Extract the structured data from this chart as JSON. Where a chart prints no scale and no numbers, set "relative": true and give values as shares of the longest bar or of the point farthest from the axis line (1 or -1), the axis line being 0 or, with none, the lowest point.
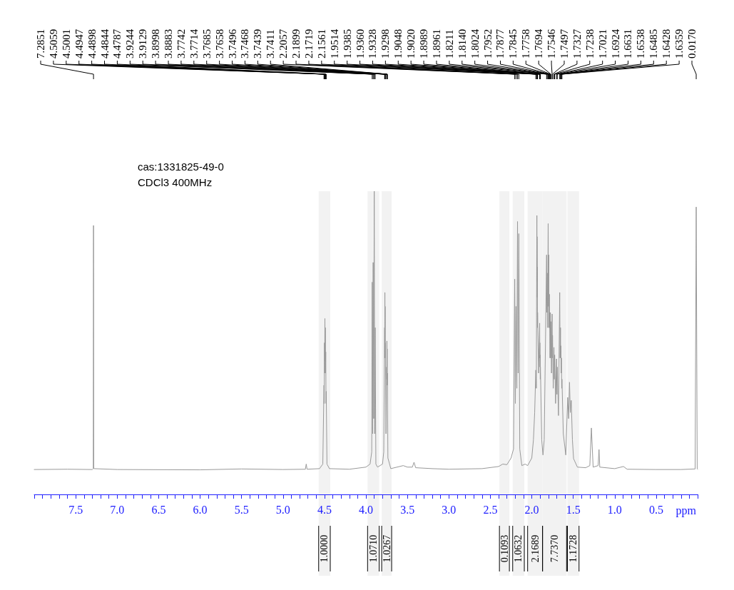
{
  "chart_data": {
    "type": "line",
    "title": "cas:1331825-49-0",
    "subtitle": "CDCl3 400MHz",
    "xlabel": "ppm",
    "relative": true,
    "x": [
      8.0,
      7.6,
      7.3,
      7.288,
      7.2851,
      7.282,
      7.0,
      6.0,
      5.5,
      5.0,
      4.73,
      4.72,
      4.71,
      4.56,
      4.52,
      4.5059,
      4.503,
      4.5001,
      4.4975,
      4.4947,
      4.4922,
      4.4898,
      4.487,
      4.4844,
      4.4815,
      4.4787,
      4.47,
      4.44,
      4.2,
      4.0,
      3.95,
      3.93,
      3.9244,
      3.9185,
      3.9129,
      3.906,
      3.8998,
      3.894,
      3.8883,
      3.88,
      3.86,
      3.8,
      3.785,
      3.7742,
      3.7728,
      3.7714,
      3.77,
      3.7685,
      3.7672,
      3.7658,
      3.758,
      3.7496,
      3.7482,
      3.7468,
      3.7454,
      3.7439,
      3.7425,
      3.7411,
      3.735,
      3.7,
      3.55,
      3.5,
      3.44,
      3.42,
      3.4,
      3.2,
      3.0,
      2.6,
      2.4,
      2.35,
      2.3,
      2.25,
      2.22,
      2.2057,
      2.198,
      2.1899,
      2.18,
      2.1719,
      2.164,
      2.1561,
      2.145,
      2.12,
      2.08,
      2.05,
      2.0,
      1.98,
      1.965,
      1.9514,
      1.945,
      1.9385,
      1.9372,
      1.936,
      1.9344,
      1.9328,
      1.9313,
      1.9298,
      1.918,
      1.9048,
      1.9034,
      1.902,
      1.9005,
      1.8989,
      1.8975,
      1.8961,
      1.88,
      1.865,
      1.85,
      1.8211,
      1.8175,
      1.814,
      1.808,
      1.8024,
      1.799,
      1.7952,
      1.7915,
      1.7877,
      1.7861,
      1.7845,
      1.78,
      1.7758,
      1.7725,
      1.7694,
      1.762,
      1.7546,
      1.752,
      1.7497,
      1.741,
      1.7327,
      1.728,
      1.7238,
      1.713,
      1.7021,
      1.697,
      1.6924,
      1.678,
      1.6631,
      1.6585,
      1.6538,
      1.651,
      1.6485,
      1.6456,
      1.6428,
      1.639,
      1.6359,
      1.62,
      1.59,
      1.567,
      1.556,
      1.545,
      1.535,
      1.524,
      1.51,
      1.496,
      1.45,
      1.35,
      1.3,
      1.281,
      1.26,
      1.2,
      1.189,
      1.18,
      1.0,
      0.894,
      0.85,
      0.5,
      0.2,
      0.03,
      0.017,
      0.005,
      0.0
    ],
    "series": [
      {
        "color": "#999999",
        "values": [
          0.082,
          0.083,
          0.082,
          0.085,
          0.887,
          0.085,
          0.082,
          0.081,
          0.084,
          0.082,
          0.083,
          0.1,
          0.083,
          0.085,
          0.1,
          0.36,
          0.3,
          0.5,
          0.4,
          0.58,
          0.44,
          0.55,
          0.4,
          0.47,
          0.3,
          0.34,
          0.1,
          0.085,
          0.083,
          0.09,
          0.1,
          0.14,
          0.7,
          0.2,
          0.765,
          0.25,
          1,
          0.2,
          0.55,
          0.1,
          0.09,
          0.1,
          0.14,
          0.55,
          0.45,
          0.666,
          0.5,
          0.62,
          0.45,
          0.5,
          0.2,
          0.42,
          0.38,
          0.506,
          0.4,
          0.48,
          0.36,
          0.4,
          0.12,
          0.085,
          0.095,
          0.09,
          0.09,
          0.106,
          0.088,
          0.085,
          0.083,
          0.085,
          0.092,
          0.1,
          0.098,
          0.12,
          0.15,
          0.71,
          0.3,
          0.62,
          0.35,
          0.9,
          0.4,
          0.86,
          0.15,
          0.095,
          0.1,
          0.095,
          0.12,
          0.18,
          0.27,
          0.41,
          0.35,
          0.92,
          0.7,
          0.85,
          0.65,
          0.75,
          0.55,
          0.6,
          0.4,
          0.565,
          0.45,
          0.5,
          0.42,
          0.46,
          0.38,
          0.42,
          0.18,
          0.13,
          0.18,
          0.79,
          0.6,
          0.73,
          0.55,
          0.893,
          0.62,
          0.79,
          0.55,
          0.66,
          0.55,
          0.6,
          0.45,
          0.6,
          0.45,
          0.57,
          0.4,
          0.595,
          0.45,
          0.525,
          0.35,
          0.485,
          0.38,
          0.46,
          0.3,
          0.447,
          0.33,
          0.42,
          0.26,
          0.666,
          0.45,
          0.55,
          0.45,
          0.49,
          0.4,
          0.45,
          0.35,
          0.38,
          0.2,
          0.13,
          0.32,
          0.25,
          0.37,
          0.27,
          0.31,
          0.18,
          0.118,
          0.09,
          0.088,
          0.095,
          0.219,
          0.09,
          0.095,
          0.148,
          0.09,
          0.085,
          0.092,
          0.083,
          0.082,
          0.082,
          0.084,
          0.948,
          0.084,
          0.083
        ]
      }
    ],
    "xlim": [
      8,
      0
    ],
    "xticks": [
      {
        "value": 8,
        "label": null
      },
      {
        "value": 7.9,
        "label": null
      },
      {
        "value": 7.8,
        "label": null
      },
      {
        "value": 7.7,
        "label": null
      },
      {
        "value": 7.6,
        "label": null
      },
      7.5,
      {
        "value": 7.4,
        "label": null
      },
      {
        "value": 7.3,
        "label": null
      },
      {
        "value": 7.2,
        "label": null
      },
      {
        "value": 7.1,
        "label": null
      },
      {
        "value": 7,
        "label": "7.0"
      },
      {
        "value": 6.9,
        "label": null
      },
      {
        "value": 6.8,
        "label": null
      },
      {
        "value": 6.7,
        "label": null
      },
      {
        "value": 6.6,
        "label": null
      },
      6.5,
      {
        "value": 6.4,
        "label": null
      },
      {
        "value": 6.3,
        "label": null
      },
      {
        "value": 6.2,
        "label": null
      },
      {
        "value": 6.1,
        "label": null
      },
      {
        "value": 6,
        "label": "6.0"
      },
      {
        "value": 5.9,
        "label": null
      },
      {
        "value": 5.8,
        "label": null
      },
      {
        "value": 5.7,
        "label": null
      },
      {
        "value": 5.6,
        "label": null
      },
      5.5,
      {
        "value": 5.4,
        "label": null
      },
      {
        "value": 5.3,
        "label": null
      },
      {
        "value": 5.2,
        "label": null
      },
      {
        "value": 5.1,
        "label": null
      },
      {
        "value": 5,
        "label": "5.0"
      },
      {
        "value": 4.9,
        "label": null
      },
      {
        "value": 4.8,
        "label": null
      },
      {
        "value": 4.7,
        "label": null
      },
      {
        "value": 4.6,
        "label": null
      },
      4.5,
      {
        "value": 4.4,
        "label": null
      },
      {
        "value": 4.3,
        "label": null
      },
      {
        "value": 4.2,
        "label": null
      },
      {
        "value": 4.1,
        "label": null
      },
      {
        "value": 4,
        "label": "4.0"
      },
      {
        "value": 3.9,
        "label": null
      },
      {
        "value": 3.8,
        "label": null
      },
      {
        "value": 3.7,
        "label": null
      },
      {
        "value": 3.6,
        "label": null
      },
      3.5,
      {
        "value": 3.4,
        "label": null
      },
      {
        "value": 3.3,
        "label": null
      },
      {
        "value": 3.2,
        "label": null
      },
      {
        "value": 3.1,
        "label": null
      },
      {
        "value": 3,
        "label": "3.0"
      },
      {
        "value": 2.9,
        "label": null
      },
      {
        "value": 2.8,
        "label": null
      },
      {
        "value": 2.7,
        "label": null
      },
      {
        "value": 2.6,
        "label": null
      },
      2.5,
      {
        "value": 2.4,
        "label": null
      },
      {
        "value": 2.3,
        "label": null
      },
      {
        "value": 2.2,
        "label": null
      },
      {
        "value": 2.1,
        "label": null
      },
      {
        "value": 2,
        "label": "2.0"
      },
      {
        "value": 1.9,
        "label": null
      },
      {
        "value": 1.8,
        "label": null
      },
      {
        "value": 1.7,
        "label": null
      },
      {
        "value": 1.6,
        "label": null
      },
      1.5,
      {
        "value": 1.4,
        "label": null
      },
      {
        "value": 1.3,
        "label": null
      },
      {
        "value": 1.2,
        "label": null
      },
      {
        "value": 1.1,
        "label": null
      },
      {
        "value": 1,
        "label": "1.0"
      },
      {
        "value": 0.9,
        "label": null
      },
      {
        "value": 0.8,
        "label": null
      },
      {
        "value": 0.7,
        "label": null
      },
      {
        "value": 0.6,
        "label": null
      },
      0.5,
      {
        "value": 0.4,
        "label": null
      },
      {
        "value": 0.3,
        "label": null
      },
      {
        "value": 0.2,
        "label": null
      },
      {
        "value": 0.1,
        "label": null
      },
      {
        "value": 0,
        "label": null
      }
    ],
    "annotations": [
      {
        "text": "7.2851",
        "x": 7.2851
      },
      {
        "text": "4.5059",
        "x": 4.5059
      },
      {
        "text": "4.5001",
        "x": 4.5001
      },
      {
        "text": "4.4947",
        "x": 4.4947
      },
      {
        "text": "4.4898",
        "x": 4.4898
      },
      {
        "text": "4.4844",
        "x": 4.4844
      },
      {
        "text": "4.4787",
        "x": 4.4787
      },
      {
        "text": "3.9244",
        "x": 3.9244
      },
      {
        "text": "3.9129",
        "x": 3.9129
      },
      {
        "text": "3.8998",
        "x": 3.8998
      },
      {
        "text": "3.8883",
        "x": 3.8883
      },
      {
        "text": "3.7742",
        "x": 3.7742
      },
      {
        "text": "3.7714",
        "x": 3.7714
      },
      {
        "text": "3.7685",
        "x": 3.7685
      },
      {
        "text": "3.7658",
        "x": 3.7658
      },
      {
        "text": "3.7496",
        "x": 3.7496
      },
      {
        "text": "3.7468",
        "x": 3.7468
      },
      {
        "text": "3.7439",
        "x": 3.7439
      },
      {
        "text": "3.7411",
        "x": 3.7411
      },
      {
        "text": "2.2057",
        "x": 2.2057
      },
      {
        "text": "2.1899",
        "x": 2.1899
      },
      {
        "text": "2.1719",
        "x": 2.1719
      },
      {
        "text": "2.1561",
        "x": 2.1561
      },
      {
        "text": "1.9514",
        "x": 1.9514
      },
      {
        "text": "1.9385",
        "x": 1.9385
      },
      {
        "text": "1.9360",
        "x": 1.936
      },
      {
        "text": "1.9328",
        "x": 1.9328
      },
      {
        "text": "1.9298",
        "x": 1.9298
      },
      {
        "text": "1.9048",
        "x": 1.9048
      },
      {
        "text": "1.9020",
        "x": 1.902
      },
      {
        "text": "1.8989",
        "x": 1.8989
      },
      {
        "text": "1.8961",
        "x": 1.8961
      },
      {
        "text": "1.8211",
        "x": 1.8211
      },
      {
        "text": "1.8140",
        "x": 1.814
      },
      {
        "text": "1.8024",
        "x": 1.8024
      },
      {
        "text": "1.7952",
        "x": 1.7952
      },
      {
        "text": "1.7877",
        "x": 1.7877
      },
      {
        "text": "1.7845",
        "x": 1.7845
      },
      {
        "text": "1.7758",
        "x": 1.7758
      },
      {
        "text": "1.7694",
        "x": 1.7694
      },
      {
        "text": "1.7546",
        "x": 1.7546
      },
      {
        "text": "1.7497",
        "x": 1.7497
      },
      {
        "text": "1.7327",
        "x": 1.7327
      },
      {
        "text": "1.7238",
        "x": 1.7238
      },
      {
        "text": "1.7021",
        "x": 1.7021
      },
      {
        "text": "1.6924",
        "x": 1.6924
      },
      {
        "text": "1.6631",
        "x": 1.6631
      },
      {
        "text": "1.6538",
        "x": 1.6538
      },
      {
        "text": "1.6485",
        "x": 1.6485
      },
      {
        "text": "1.6428",
        "x": 1.6428
      },
      {
        "text": "1.6359",
        "x": 1.6359
      },
      {
        "text": "0.0170",
        "x": 0.017
      }
    ],
    "bands": [
      {
        "axis": "x",
        "from": 4.57,
        "to": 4.43,
        "label": "1.0000"
      },
      {
        "axis": "x",
        "from": 3.98,
        "to": 3.84,
        "label": "1.0710"
      },
      {
        "axis": "x",
        "from": 3.81,
        "to": 3.69,
        "label": "1.0267"
      },
      {
        "axis": "x",
        "from": 2.39,
        "to": 2.27,
        "label": "0.1093"
      },
      {
        "axis": "x",
        "from": 2.23,
        "to": 2.09,
        "label": "1.0632"
      },
      {
        "axis": "x",
        "from": 2.05,
        "to": 1.87,
        "label": "2.1689"
      },
      {
        "axis": "x",
        "from": 1.87,
        "to": 1.58,
        "label": "7.7370"
      },
      {
        "axis": "x",
        "from": 1.57,
        "to": 1.43,
        "label": "1.1728"
      }
    ]
  }
}
